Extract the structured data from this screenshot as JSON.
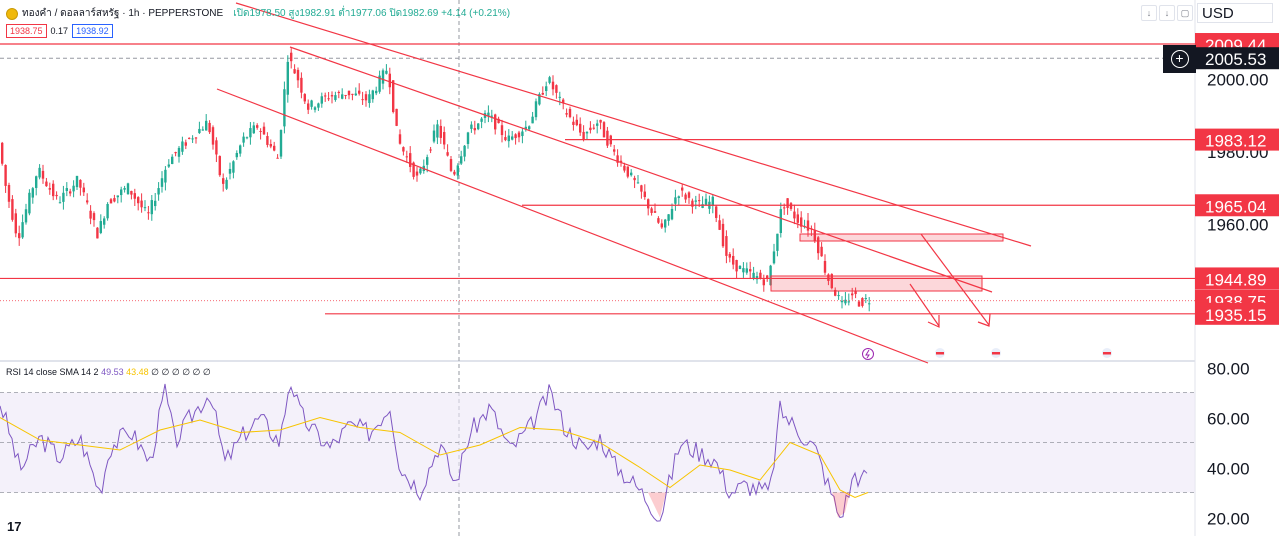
{
  "legend": {
    "symbol": "ทองคำ / ดอลลาร์สหรัฐ · 1h · PEPPERSTONE",
    "ohlc": "เปิด1978.50 สูง1982.91 ต่ำ1977.06 ปิด1982.69 +4.14 (+0.21%)",
    "bid": "1938.75",
    "spread": "0.17",
    "ask": "1938.92"
  },
  "currency": "USD",
  "toolbar": {
    "up_icon": "arrow-up-icon",
    "down_icon": "arrow-down-icon",
    "window_icon": "window-icon"
  },
  "rsi_legend": {
    "label": "RSI 14 close SMA 14 2",
    "rsi": "49.53",
    "sma": "43.48",
    "extra": "∅ ∅ ∅ ∅ ∅ ∅"
  },
  "logo": "17",
  "colors": {
    "up": "#22ab94",
    "down": "#f23645",
    "drawing": "#f23645",
    "rsi": "#7e57c2",
    "rsi_ma": "#f7c400",
    "rsi_band": "#ede7f6"
  },
  "chart_data": [
    {
      "type": "candlestick",
      "title": "ทองคำ / ดอลลาร์สหรัฐ · 1h · PEPPERSTONE",
      "ylim": [
        1930,
        2013
      ],
      "y_ticks": [
        {
          "value": 2000,
          "label": "2000.00"
        },
        {
          "value": 1980,
          "label": "1980.00"
        },
        {
          "value": 1960,
          "label": "1960.00"
        }
      ],
      "price_labels": [
        {
          "value": 2009.44,
          "label": "2009.44",
          "kind": "level"
        },
        {
          "value": 2005.53,
          "label": "2005.53",
          "kind": "crosshair"
        },
        {
          "value": 1983.12,
          "label": "1983.12",
          "kind": "level"
        },
        {
          "value": 1965.04,
          "label": "1965.04",
          "kind": "level"
        },
        {
          "value": 1944.89,
          "label": "1944.89",
          "kind": "level"
        },
        {
          "value": 1938.75,
          "label": "1938.75",
          "kind": "last"
        },
        {
          "value": 1935.15,
          "label": "1935.15",
          "kind": "level"
        }
      ],
      "path": [
        [
          0,
          1984
        ],
        [
          8,
          1970
        ],
        [
          20,
          1956
        ],
        [
          40,
          1975
        ],
        [
          60,
          1966
        ],
        [
          80,
          1972
        ],
        [
          100,
          1957
        ],
        [
          110,
          1966
        ],
        [
          130,
          1970
        ],
        [
          150,
          1962
        ],
        [
          170,
          1977
        ],
        [
          190,
          1983
        ],
        [
          210,
          1988
        ],
        [
          225,
          1970
        ],
        [
          245,
          1983
        ],
        [
          260,
          1987
        ],
        [
          280,
          1978
        ],
        [
          290,
          2006
        ],
        [
          300,
          2000
        ],
        [
          310,
          1992
        ],
        [
          330,
          1995
        ],
        [
          350,
          1996
        ],
        [
          370,
          1994
        ],
        [
          390,
          2003
        ],
        [
          400,
          1983
        ],
        [
          420,
          1972
        ],
        [
          440,
          1987
        ],
        [
          455,
          1973
        ],
        [
          470,
          1985
        ],
        [
          490,
          1990
        ],
        [
          510,
          1983
        ],
        [
          530,
          1987
        ],
        [
          550,
          2000
        ],
        [
          565,
          1992
        ],
        [
          585,
          1984
        ],
        [
          600,
          1988
        ],
        [
          615,
          1980
        ],
        [
          640,
          1970
        ],
        [
          665,
          1958
        ],
        [
          680,
          1969
        ],
        [
          700,
          1965
        ],
        [
          715,
          1966
        ],
        [
          730,
          1950
        ],
        [
          745,
          1947
        ],
        [
          770,
          1944
        ],
        [
          785,
          1966
        ],
        [
          800,
          1961
        ],
        [
          815,
          1958
        ],
        [
          830,
          1945
        ],
        [
          845,
          1937
        ],
        [
          855,
          1941
        ],
        [
          862,
          1938
        ],
        [
          868,
          1939
        ]
      ]
    },
    {
      "type": "line",
      "title": "RSI 14 close SMA 14 2",
      "ylim": [
        15,
        85
      ],
      "y_ticks": [
        {
          "value": 80,
          "label": "80.00"
        },
        {
          "value": 60,
          "label": "60.00"
        },
        {
          "value": 40,
          "label": "40.00"
        },
        {
          "value": 20,
          "label": "20.00"
        }
      ],
      "bands": [
        70,
        50,
        30
      ],
      "series": [
        {
          "points": [
            [
              0,
              66
            ],
            [
              8,
              56
            ],
            [
              20,
              39
            ],
            [
              40,
              52
            ],
            [
              60,
              44
            ],
            [
              80,
              52
            ],
            [
              100,
              30
            ],
            [
              110,
              48
            ],
            [
              130,
              55
            ],
            [
              150,
              42
            ],
            [
              165,
              71
            ],
            [
              175,
              50
            ],
            [
              190,
              60
            ],
            [
              210,
              70
            ],
            [
              225,
              42
            ],
            [
              245,
              54
            ],
            [
              260,
              60
            ],
            [
              280,
              50
            ],
            [
              290,
              76
            ],
            [
              300,
              62
            ],
            [
              310,
              56
            ],
            [
              330,
              48
            ],
            [
              350,
              57
            ],
            [
              370,
              54
            ],
            [
              390,
              65
            ],
            [
              400,
              40
            ],
            [
              420,
              31
            ],
            [
              440,
              50
            ],
            [
              455,
              33
            ],
            [
              470,
              54
            ],
            [
              490,
              64
            ],
            [
              510,
              47
            ],
            [
              530,
              56
            ],
            [
              550,
              70
            ],
            [
              565,
              56
            ],
            [
              585,
              47
            ],
            [
              600,
              52
            ],
            [
              615,
              41
            ],
            [
              640,
              31
            ],
            [
              660,
              20
            ],
            [
              670,
              35
            ],
            [
              680,
              50
            ],
            [
              700,
              46
            ],
            [
              715,
              43
            ],
            [
              730,
              30
            ],
            [
              745,
              33
            ],
            [
              770,
              30
            ],
            [
              780,
              63
            ],
            [
              800,
              54
            ],
            [
              815,
              48
            ],
            [
              830,
              31
            ],
            [
              840,
              20
            ],
            [
              848,
              29
            ],
            [
              855,
              38
            ],
            [
              862,
              34
            ],
            [
              868,
              40
            ]
          ]
        },
        {
          "points": [
            [
              0,
              60
            ],
            [
              40,
              51
            ],
            [
              80,
              49
            ],
            [
              120,
              47
            ],
            [
              160,
              55
            ],
            [
              200,
              59
            ],
            [
              240,
              54
            ],
            [
              280,
              55
            ],
            [
              320,
              60
            ],
            [
              360,
              56
            ],
            [
              400,
              54
            ],
            [
              440,
              45
            ],
            [
              480,
              49
            ],
            [
              520,
              56
            ],
            [
              560,
              55
            ],
            [
              600,
              50
            ],
            [
              640,
              40
            ],
            [
              670,
              32
            ],
            [
              700,
              41
            ],
            [
              730,
              39
            ],
            [
              760,
              35
            ],
            [
              790,
              50
            ],
            [
              820,
              45
            ],
            [
              840,
              31
            ],
            [
              855,
              28
            ],
            [
              868,
              30
            ]
          ]
        }
      ]
    }
  ]
}
